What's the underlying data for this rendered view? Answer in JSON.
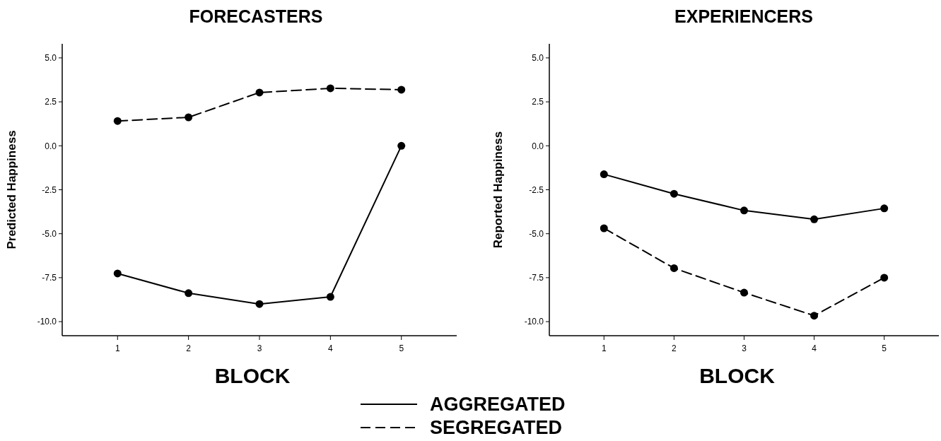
{
  "chart_data": [
    {
      "type": "line",
      "title": "FORECASTERS",
      "xlabel": "BLOCK",
      "ylabel": "Predicted Happiness",
      "x": [
        1,
        2,
        3,
        4,
        5
      ],
      "xlim": [
        0.22,
        5.78
      ],
      "xticks": [
        1,
        2,
        3,
        4,
        5
      ],
      "ylim": [
        -10.8,
        5.8
      ],
      "yticks": [
        {
          "value": 5,
          "label": "5.0"
        },
        2.5,
        {
          "value": 0,
          "label": "0.0"
        },
        -2.5,
        {
          "value": -5,
          "label": "-5.0"
        },
        -7.5,
        {
          "value": -10,
          "label": "-10.0"
        }
      ],
      "marker": "circle",
      "legend": "bottom",
      "grid": false,
      "series": [
        {
          "name": "AGGREGATED",
          "color": "#000000",
          "line_style": "solid",
          "values": [
            -7.26,
            -8.38,
            -9.0,
            -8.59,
            0.0
          ]
        },
        {
          "name": "SEGREGATED",
          "color": "#000000",
          "line_style": "dashed",
          "values": [
            1.41,
            1.62,
            3.03,
            3.27,
            3.19
          ]
        }
      ]
    },
    {
      "type": "line",
      "title": "EXPERIENCERS",
      "xlabel": "BLOCK",
      "ylabel": "Reported Happiness",
      "x": [
        1,
        2,
        3,
        4,
        5
      ],
      "xlim": [
        0.22,
        5.78
      ],
      "xticks": [
        1,
        2,
        3,
        4,
        5
      ],
      "ylim": [
        -10.8,
        5.8
      ],
      "yticks": [
        {
          "value": 5,
          "label": "5.0"
        },
        2.5,
        {
          "value": 0,
          "label": "0.0"
        },
        -2.5,
        {
          "value": -5,
          "label": "-5.0"
        },
        -7.5,
        {
          "value": -10,
          "label": "-10.0"
        }
      ],
      "marker": "circle",
      "grid": false,
      "series": [
        {
          "color": "#000000",
          "line_style": "solid",
          "values": [
            -1.62,
            -2.73,
            -3.68,
            -4.18,
            -3.56
          ]
        },
        {
          "color": "#000000",
          "line_style": "dashed",
          "values": [
            -4.69,
            -6.96,
            -8.35,
            -9.66,
            -7.5
          ]
        }
      ]
    }
  ]
}
